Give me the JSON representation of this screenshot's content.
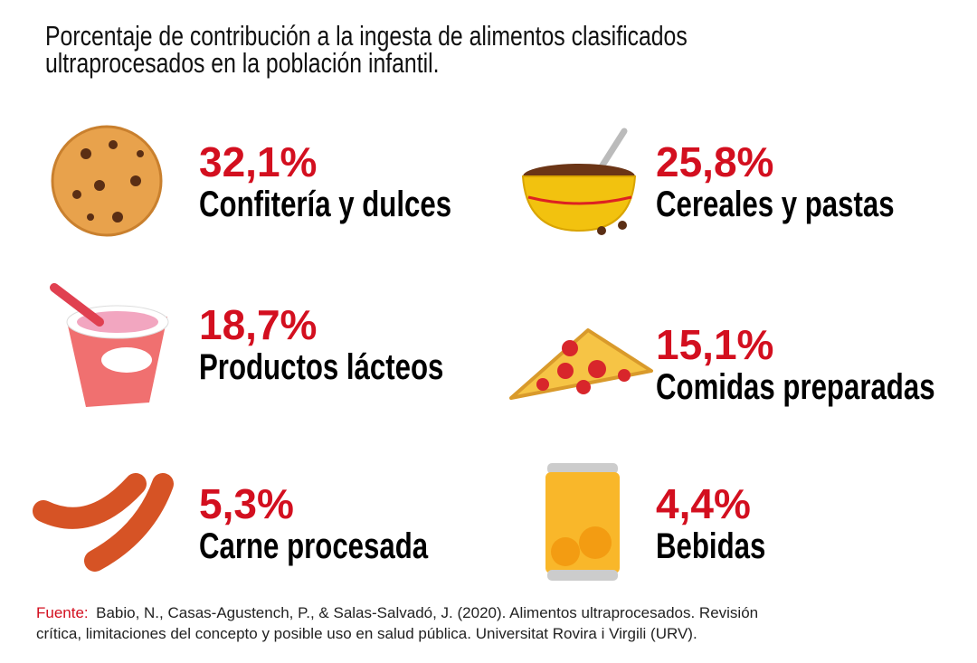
{
  "title": {
    "lines": [
      "Porcentaje de contribución a la ingesta de alimentos clasificados",
      "ultraprocesados en la población infantil."
    ]
  },
  "items": [
    {
      "percent": "32,1%",
      "label": "Confitería y dulces"
    },
    {
      "percent": "25,8%",
      "label": "Cereales y pastas"
    },
    {
      "percent": "18,7%",
      "label": "Productos lácteos"
    },
    {
      "percent": "15,1%",
      "label": "Comidas preparadas"
    },
    {
      "percent": "5,3%",
      "label": "Carne procesada"
    },
    {
      "percent": "4,4%",
      "label": "Bebidas"
    }
  ],
  "source": {
    "label": "Fuente:",
    "lines": [
      "Babio, N., Casas-Agustench, P., & Salas-Salvadó, J. (2020). Alimentos ultraprocesados. Revisión",
      "crítica, limitaciones del concepto y posible uso en salud pública. Universitat Rovira i Virgili (URV)."
    ]
  }
}
